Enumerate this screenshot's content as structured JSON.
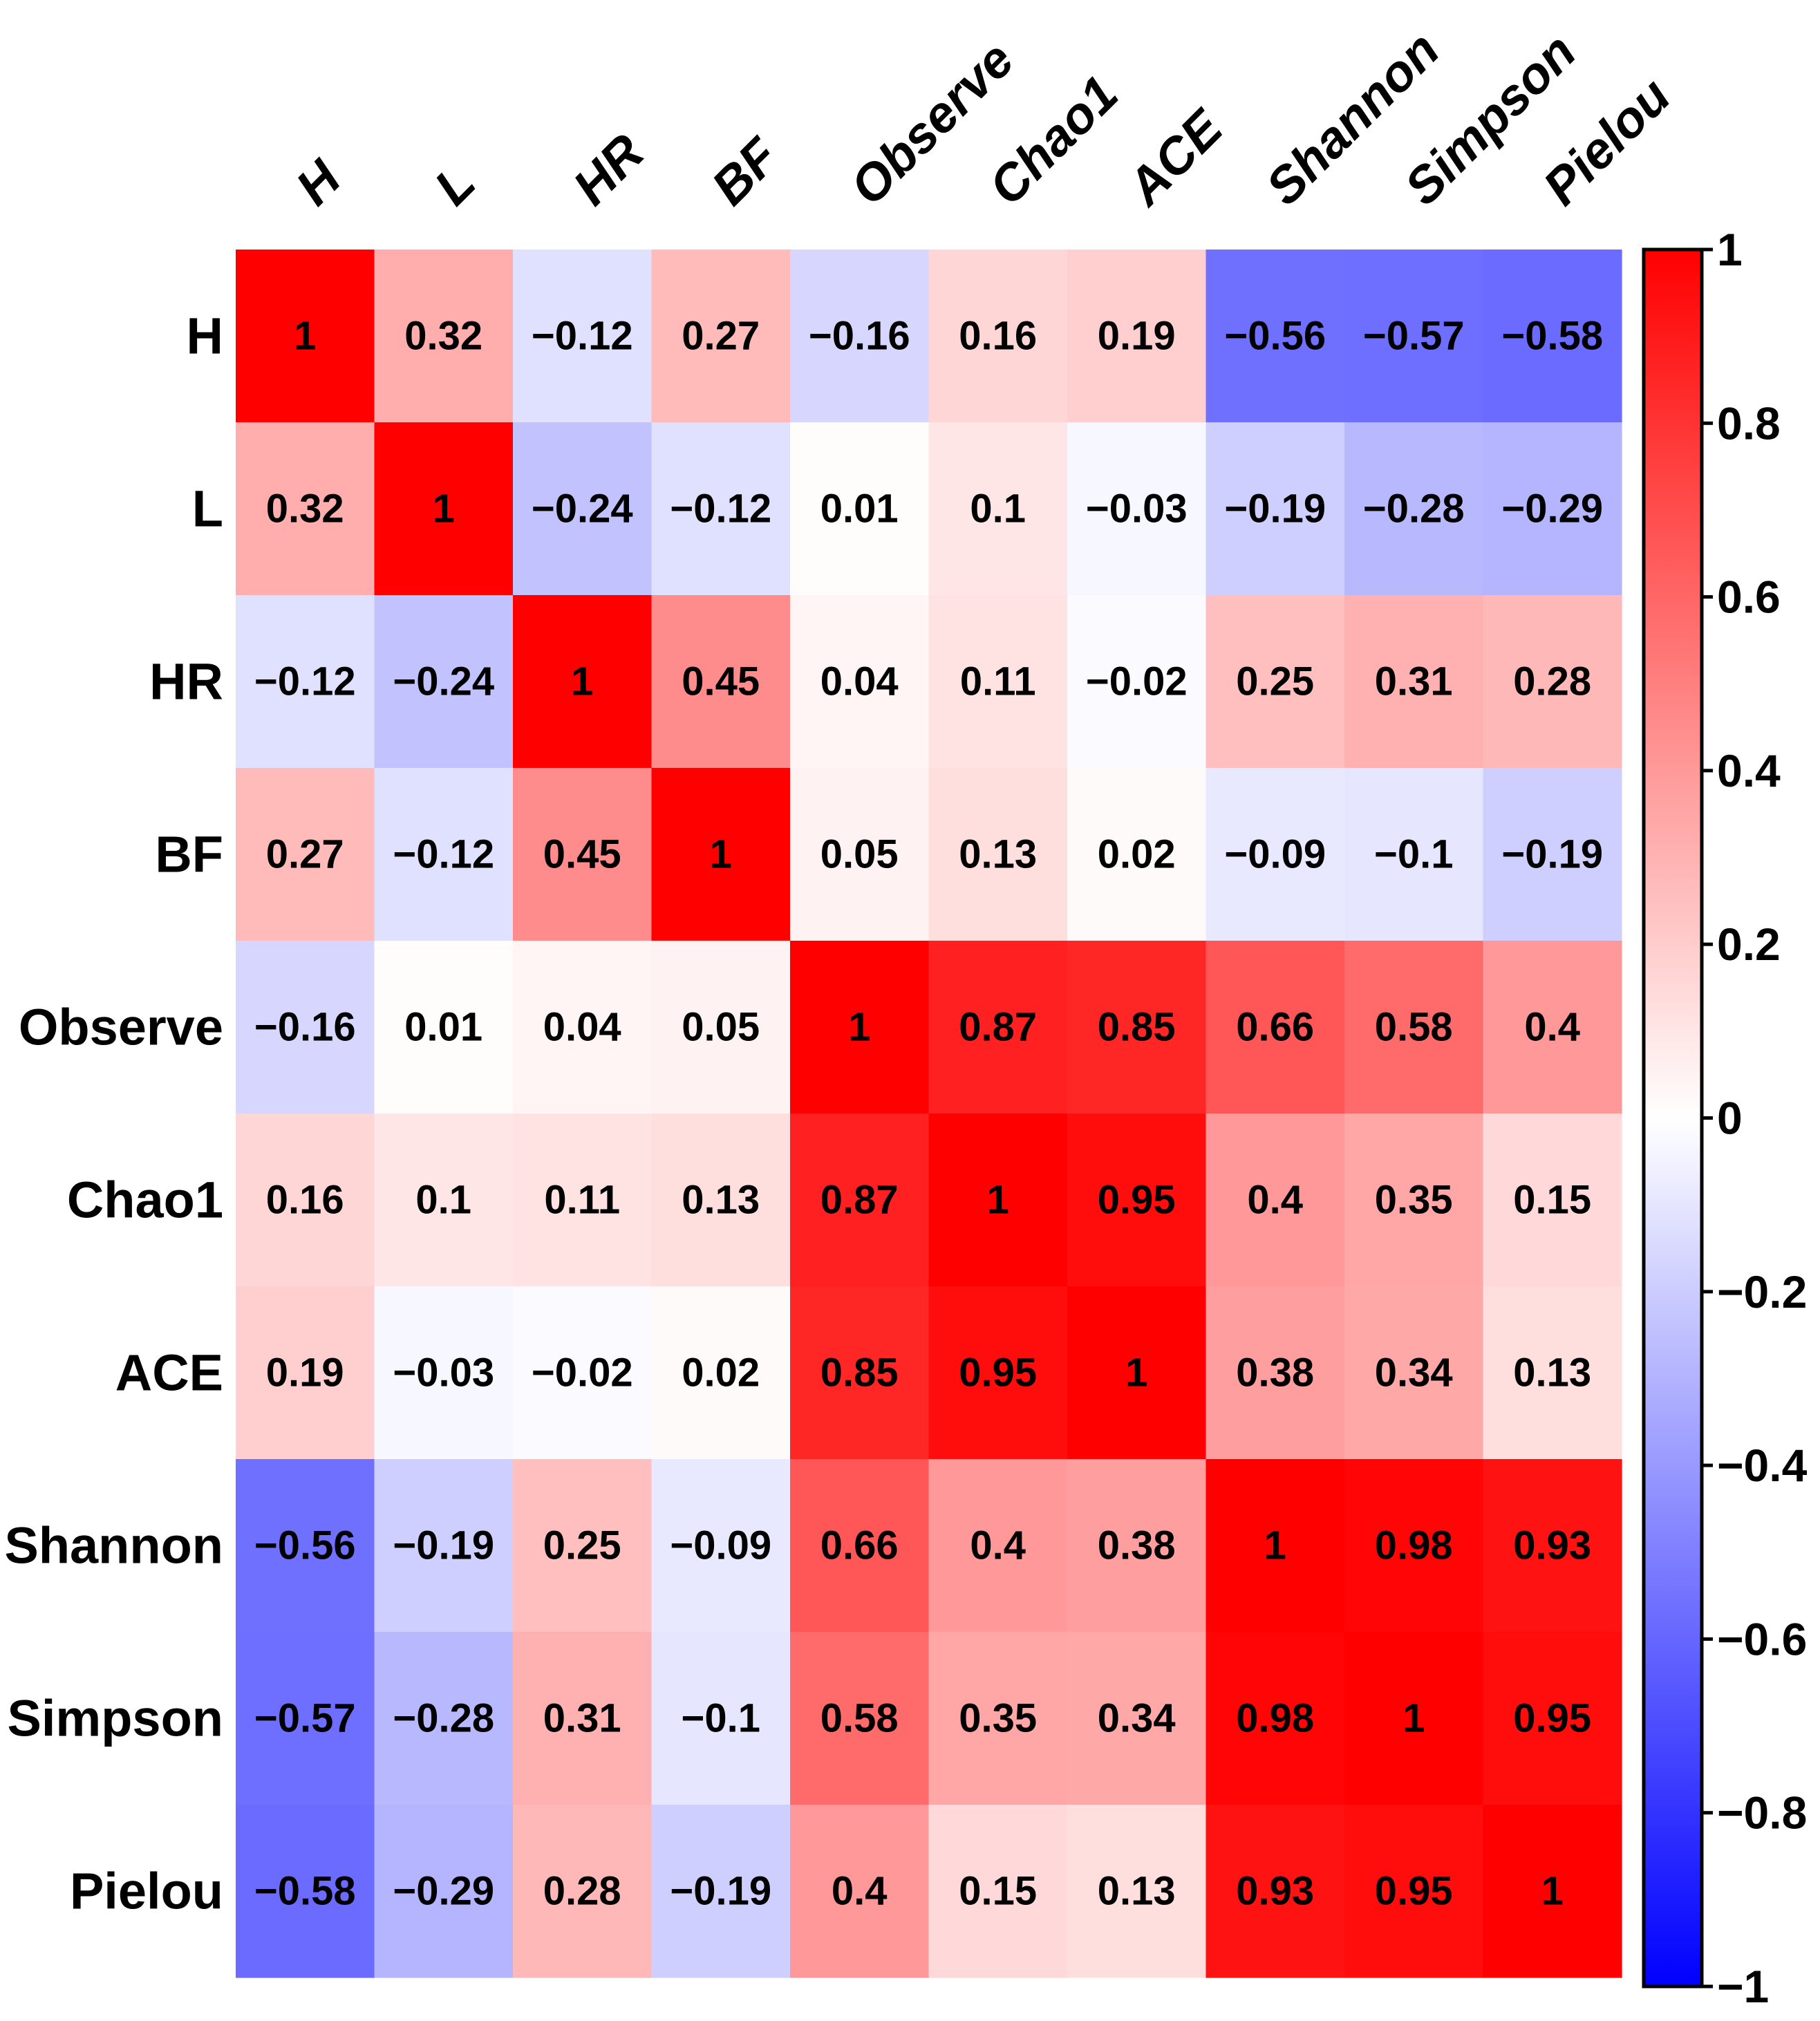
{
  "chart_data": {
    "type": "heatmap",
    "title": "",
    "rows": [
      "H",
      "L",
      "HR",
      "BF",
      "Observe",
      "Chao1",
      "ACE",
      "Shannon",
      "Simpson",
      "Pielou"
    ],
    "columns": [
      "H",
      "L",
      "HR",
      "BF",
      "Observe",
      "Chao1",
      "ACE",
      "Shannon",
      "Simpson",
      "Pielou"
    ],
    "values": [
      [
        1,
        0.32,
        -0.12,
        0.27,
        -0.16,
        0.16,
        0.19,
        -0.56,
        -0.57,
        -0.58
      ],
      [
        0.32,
        1,
        -0.24,
        -0.12,
        0.01,
        0.1,
        -0.03,
        -0.19,
        -0.28,
        -0.29
      ],
      [
        -0.12,
        -0.24,
        1,
        0.45,
        0.04,
        0.11,
        -0.02,
        0.25,
        0.31,
        0.28
      ],
      [
        0.27,
        -0.12,
        0.45,
        1,
        0.05,
        0.13,
        0.02,
        -0.09,
        -0.1,
        -0.19
      ],
      [
        -0.16,
        0.01,
        0.04,
        0.05,
        1,
        0.87,
        0.85,
        0.66,
        0.58,
        0.4
      ],
      [
        0.16,
        0.1,
        0.11,
        0.13,
        0.87,
        1,
        0.95,
        0.4,
        0.35,
        0.15
      ],
      [
        0.19,
        -0.03,
        -0.02,
        0.02,
        0.85,
        0.95,
        1,
        0.38,
        0.34,
        0.13
      ],
      [
        -0.56,
        -0.19,
        0.25,
        -0.09,
        0.66,
        0.4,
        0.38,
        1,
        0.98,
        0.93
      ],
      [
        -0.57,
        -0.28,
        0.31,
        -0.1,
        0.58,
        0.35,
        0.34,
        0.98,
        1,
        0.95
      ],
      [
        -0.58,
        -0.29,
        0.28,
        -0.19,
        0.4,
        0.15,
        0.13,
        0.93,
        0.95,
        1
      ]
    ],
    "color_scale": {
      "range": [
        -1,
        1
      ],
      "low_color": "#0000ff",
      "mid_color": "#ffffff",
      "high_color": "#ff0000",
      "ticks": [
        1,
        0.8,
        0.6,
        0.4,
        0.2,
        0,
        -0.2,
        -0.4,
        -0.6,
        -0.8,
        -1
      ],
      "tick_labels": [
        "1",
        "0.8",
        "0.6",
        "0.4",
        "0.2",
        "0",
        "−0.2",
        "−0.4",
        "−0.6",
        "−0.8",
        "−1"
      ]
    }
  }
}
